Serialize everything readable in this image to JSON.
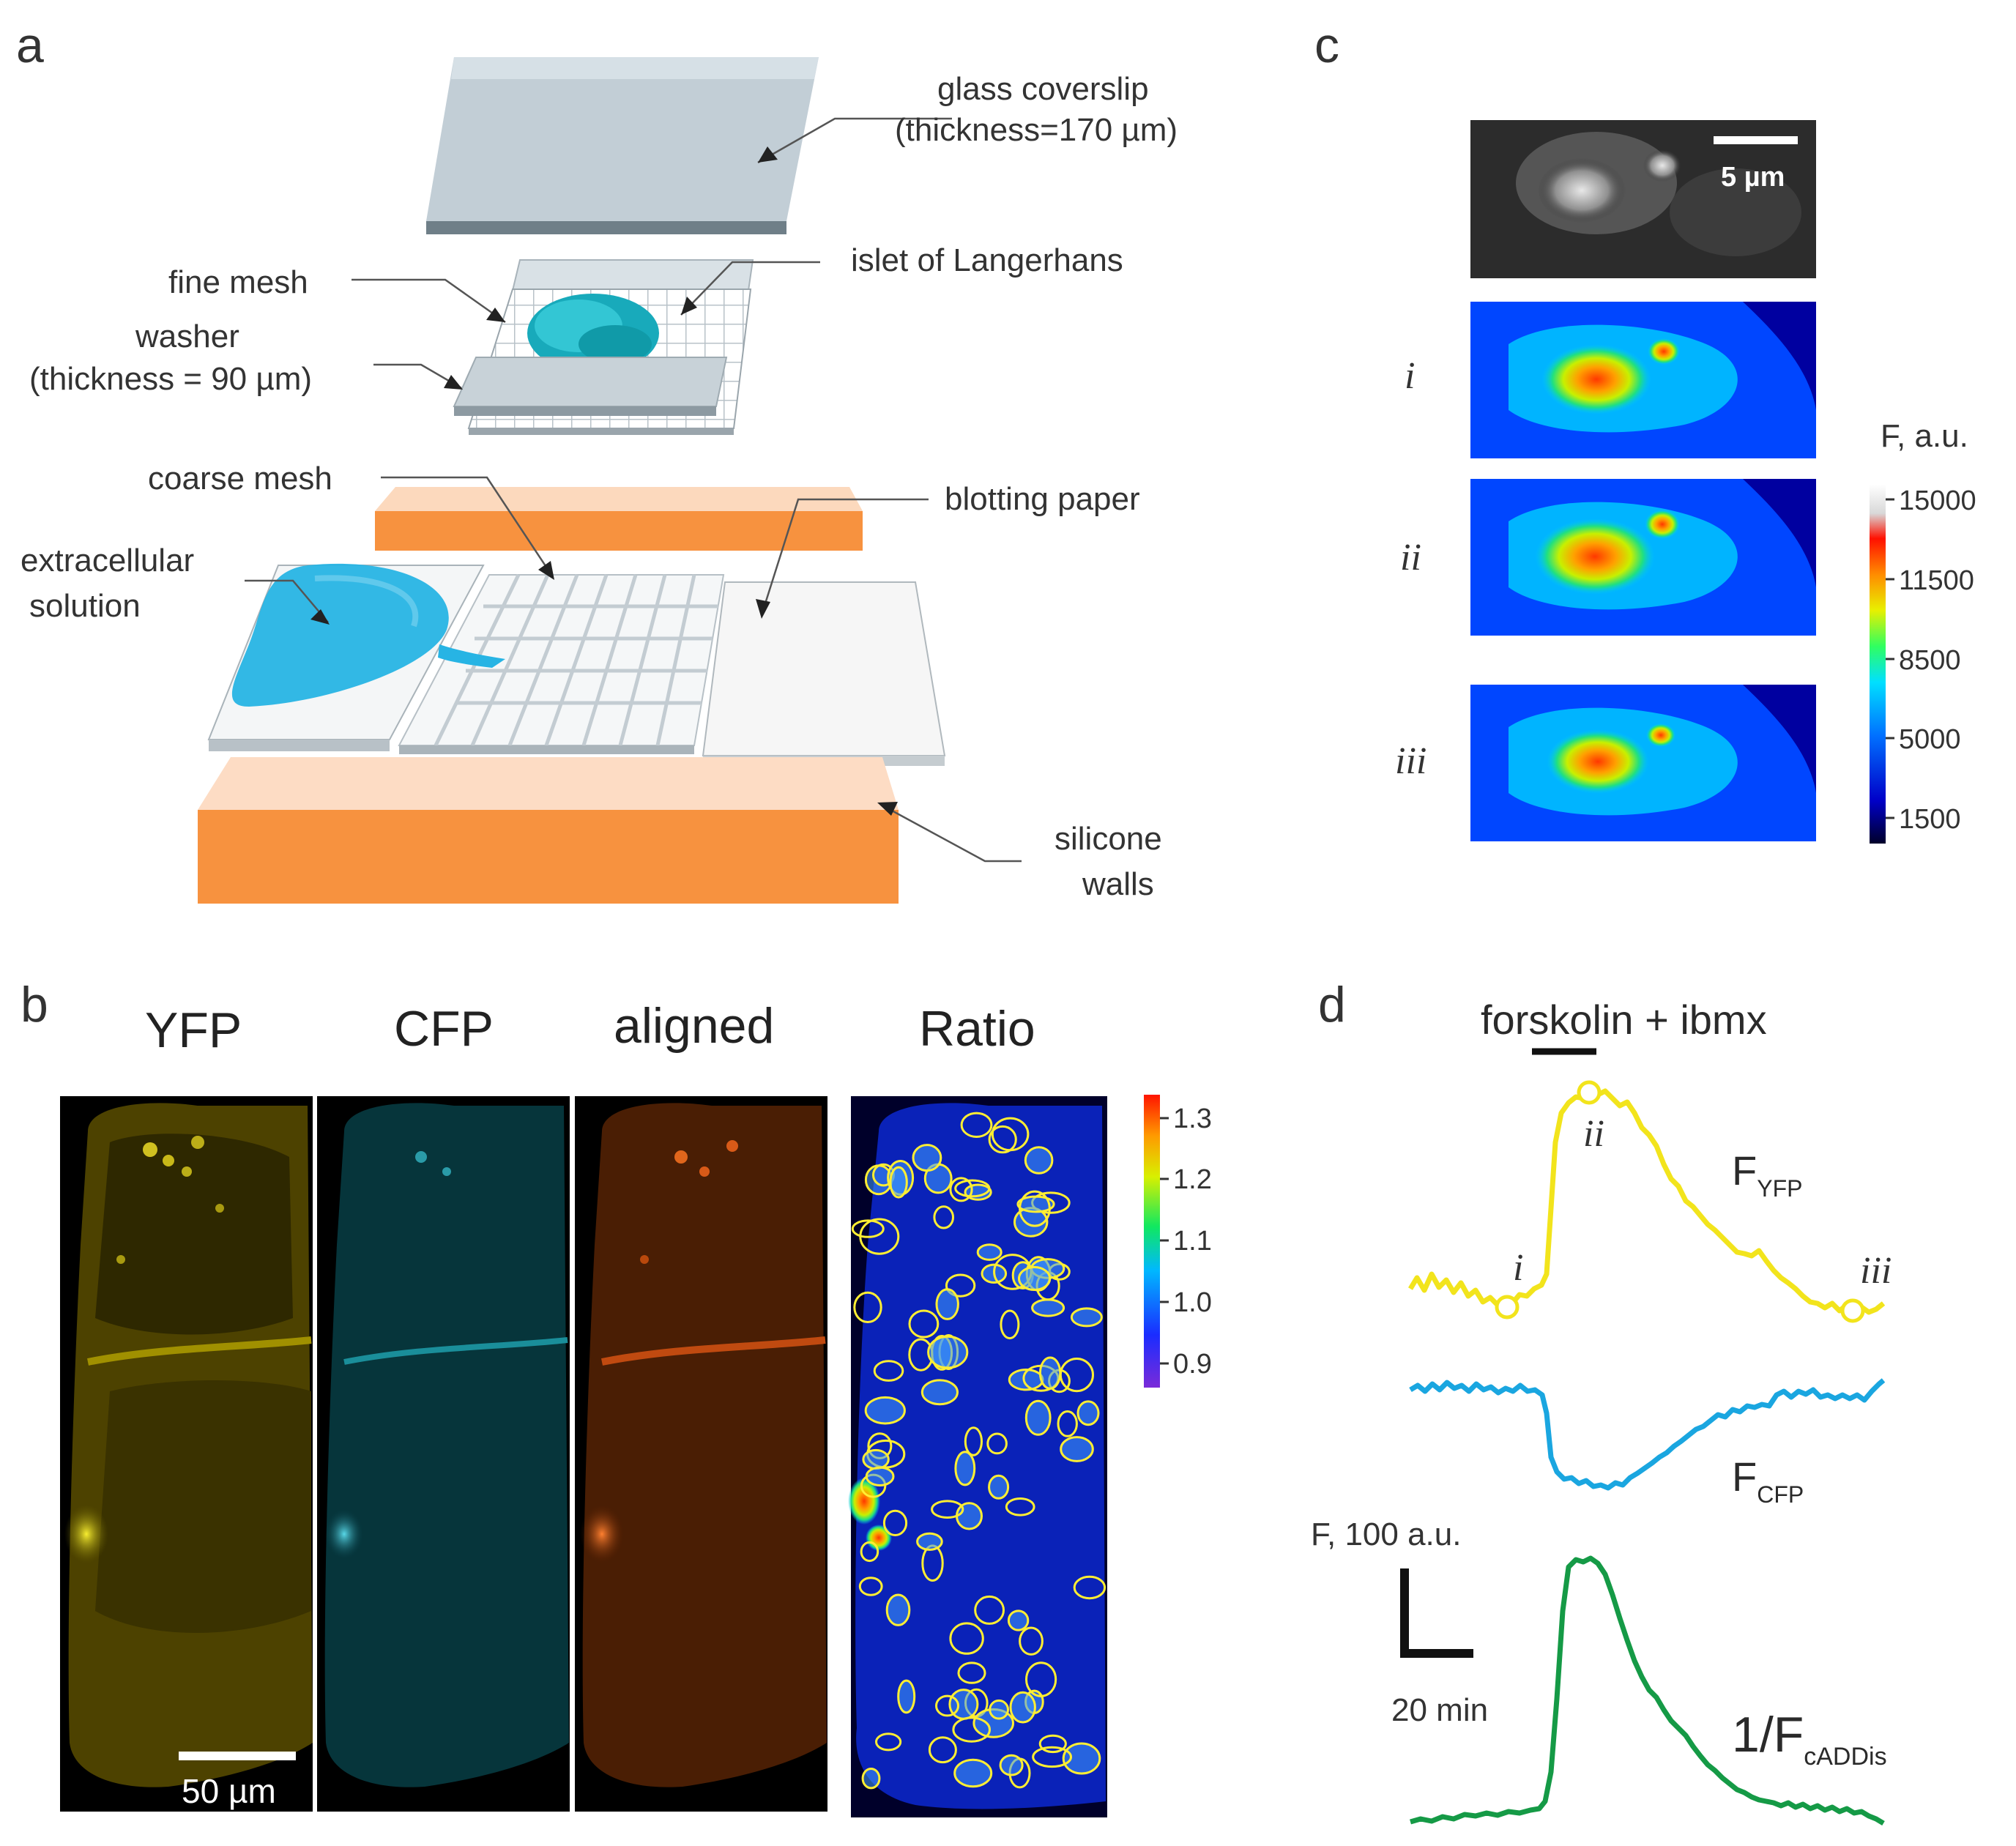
{
  "panels": {
    "a": {
      "letter": "a",
      "labels": {
        "glass_coverslip": "glass coverslip",
        "glass_coverslip_thickness": "(thickness=170 µm)",
        "fine_mesh": "fine mesh",
        "islet": "islet of Langerhans",
        "washer": "washer",
        "washer_thickness": "(thickness = 90 µm)",
        "coarse_mesh": "coarse mesh",
        "blotting_paper": "blotting paper",
        "extracellular_1": "extracellular",
        "extracellular_2": "solution",
        "silicone_1": "silicone",
        "silicone_2": "walls"
      },
      "colors": {
        "glass": "#b9c8d0",
        "orange": "#f7923f",
        "orange_light": "#fcdcc4",
        "solution": "#29b6e6",
        "islet": "#1fb3c0"
      }
    },
    "b": {
      "letter": "b",
      "channels": [
        "YFP",
        "CFP",
        "aligned",
        "Ratio"
      ],
      "scalebar": "50 µm",
      "colorbar_ticks": [
        "1.3",
        "1.2",
        "1.1",
        "1.0",
        "0.9"
      ],
      "colors": {
        "yfp": "#e6d400",
        "cfp": "#27b8c9",
        "aligned": "#e8601c",
        "ratio_bg": "#0a1fb0",
        "roi": "#ffee33"
      }
    },
    "c": {
      "letter": "c",
      "scalebar": "5 µm",
      "rows": [
        "i",
        "ii",
        "iii"
      ],
      "colorbar_title": "F, a.u.",
      "colorbar_ticks": [
        "15000",
        "11500",
        "8500",
        "5000",
        "1500"
      ]
    },
    "d": {
      "letter": "d",
      "stimulus": "forskolin + ibmx",
      "markers": [
        "i",
        "ii",
        "iii"
      ],
      "scale_y": "F, 100 a.u.",
      "scale_x": "20 min",
      "traces": [
        {
          "label_main": "F",
          "label_sub": "YFP",
          "color": "#f2e41c"
        },
        {
          "label_main": "F",
          "label_sub": "CFP",
          "color": "#1aa6e0"
        },
        {
          "label_main": "1/F",
          "label_sub": "cADDis",
          "color": "#159a46"
        }
      ]
    }
  }
}
